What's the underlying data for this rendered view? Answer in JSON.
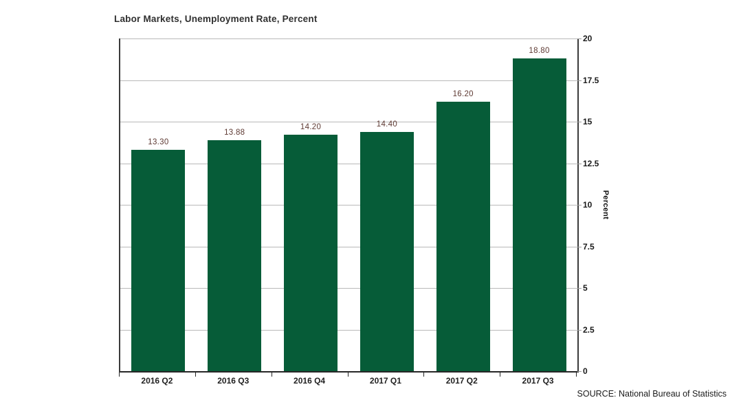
{
  "title": "Labor Markets, Unemployment Rate, Percent",
  "source": "SOURCE: National Bureau of Statistics",
  "colors": {
    "bar": "#065C38",
    "data_label": "#5e3a33",
    "gridline": "#b9b9b9",
    "axis": "#3a3a3a",
    "tick_label": "#1a1a1a"
  },
  "chart_data": {
    "type": "bar",
    "title": "Labor Markets, Unemployment Rate, Percent",
    "categories": [
      "2016 Q2",
      "2016 Q3",
      "2016 Q4",
      "2017 Q1",
      "2017 Q2",
      "2017 Q3"
    ],
    "values": [
      13.3,
      13.88,
      14.2,
      14.4,
      16.2,
      18.8
    ],
    "data_labels": [
      "13.30",
      "13.88",
      "14.20",
      "14.40",
      "16.20",
      "18.80"
    ],
    "xlabel": "",
    "ylabel": "Percent",
    "ylim": [
      0,
      20
    ],
    "yticks": [
      0,
      2.5,
      5,
      7.5,
      10,
      12.5,
      15,
      17.5,
      20
    ],
    "ytick_labels": [
      "0",
      "2.5",
      "5",
      "7.5",
      "10",
      "12.5",
      "15",
      "17.5",
      "20"
    ],
    "grid": true,
    "legend": false,
    "y_axis_side": "right"
  }
}
